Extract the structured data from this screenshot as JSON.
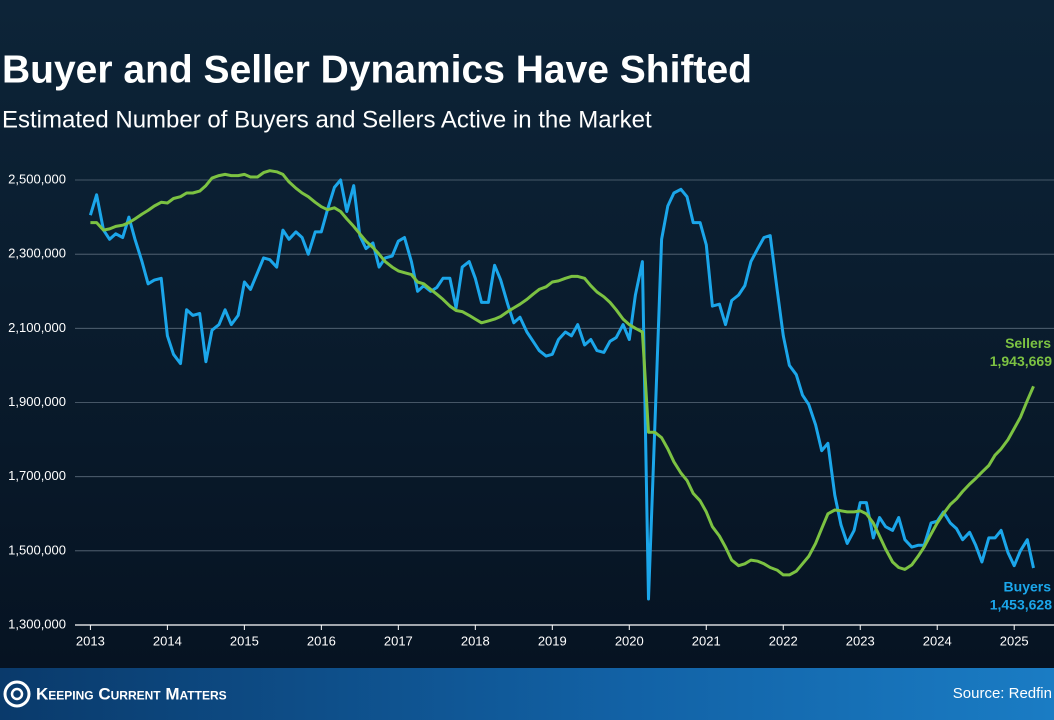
{
  "chart_data": {
    "type": "line",
    "title": "Buyer and Seller Dynamics Have Shifted",
    "subtitle": "Estimated Number of Buyers and Sellers Active in the Market",
    "brand": "Keeping Current Matters",
    "source": "Source: Redfin",
    "xlim": [
      2012.8,
      2025.4
    ],
    "xticks": [
      2013,
      2014,
      2015,
      2016,
      2017,
      2018,
      2019,
      2020,
      2021,
      2022,
      2023,
      2024,
      2025
    ],
    "ylim": [
      1300000,
      2500000
    ],
    "yticks": [
      {
        "value": 1300000,
        "label": "1,300,000"
      },
      {
        "value": 1500000,
        "label": "1,500,000"
      },
      {
        "value": 1700000,
        "label": "1,700,000"
      },
      {
        "value": 1900000,
        "label": "1,900,000"
      },
      {
        "value": 2100000,
        "label": "2,100,000"
      },
      {
        "value": 2300000,
        "label": "2,300,000"
      },
      {
        "value": 2500000,
        "label": "2,500,000"
      }
    ],
    "grid": true,
    "x": [
      2013,
      2013.08,
      2013.17,
      2013.25,
      2013.33,
      2013.42,
      2013.5,
      2013.58,
      2013.67,
      2013.75,
      2013.83,
      2013.92,
      2014,
      2014.08,
      2014.17,
      2014.25,
      2014.33,
      2014.42,
      2014.5,
      2014.58,
      2014.67,
      2014.75,
      2014.83,
      2014.92,
      2015,
      2015.08,
      2015.17,
      2015.25,
      2015.33,
      2015.42,
      2015.5,
      2015.58,
      2015.67,
      2015.75,
      2015.83,
      2015.92,
      2016,
      2016.08,
      2016.17,
      2016.25,
      2016.33,
      2016.42,
      2016.5,
      2016.58,
      2016.67,
      2016.75,
      2016.83,
      2016.92,
      2017,
      2017.08,
      2017.17,
      2017.25,
      2017.33,
      2017.42,
      2017.5,
      2017.58,
      2017.67,
      2017.75,
      2017.83,
      2017.92,
      2018,
      2018.08,
      2018.17,
      2018.25,
      2018.33,
      2018.42,
      2018.5,
      2018.58,
      2018.67,
      2018.75,
      2018.83,
      2018.92,
      2019,
      2019.08,
      2019.17,
      2019.25,
      2019.33,
      2019.42,
      2019.5,
      2019.58,
      2019.67,
      2019.75,
      2019.83,
      2019.92,
      2020,
      2020.08,
      2020.17,
      2020.25,
      2020.33,
      2020.42,
      2020.5,
      2020.58,
      2020.67,
      2020.75,
      2020.83,
      2020.92,
      2021,
      2021.08,
      2021.17,
      2021.25,
      2021.33,
      2021.42,
      2021.5,
      2021.58,
      2021.67,
      2021.75,
      2021.83,
      2021.92,
      2022,
      2022.08,
      2022.17,
      2022.25,
      2022.33,
      2022.42,
      2022.5,
      2022.58,
      2022.67,
      2022.75,
      2022.83,
      2022.92,
      2023,
      2023.08,
      2023.17,
      2023.25,
      2023.33,
      2023.42,
      2023.5,
      2023.58,
      2023.67,
      2023.75,
      2023.83,
      2023.92,
      2024,
      2024.08,
      2024.17,
      2024.25,
      2024.33,
      2024.42,
      2024.5,
      2024.58,
      2024.67,
      2024.75,
      2024.83,
      2024.92,
      2025,
      2025.08,
      2025.17,
      2025.25
    ],
    "series": [
      {
        "name": "Buyers",
        "color": "#1ba6ea",
        "end_label": "1,453,628",
        "values": [
          2405000,
          2460000,
          2365000,
          2340000,
          2355000,
          2345000,
          2400000,
          2340000,
          2280000,
          2220000,
          2230000,
          2235000,
          2080000,
          2030000,
          2005000,
          2150000,
          2135000,
          2140000,
          2010000,
          2095000,
          2110000,
          2150000,
          2110000,
          2135000,
          2225000,
          2205000,
          2250000,
          2290000,
          2285000,
          2265000,
          2365000,
          2340000,
          2360000,
          2345000,
          2300000,
          2360000,
          2360000,
          2420000,
          2480000,
          2500000,
          2415000,
          2485000,
          2350000,
          2315000,
          2330000,
          2265000,
          2290000,
          2295000,
          2335000,
          2345000,
          2280000,
          2200000,
          2215000,
          2200000,
          2210000,
          2235000,
          2235000,
          2155000,
          2265000,
          2280000,
          2235000,
          2170000,
          2170000,
          2270000,
          2230000,
          2165000,
          2115000,
          2130000,
          2090000,
          2065000,
          2040000,
          2025000,
          2030000,
          2070000,
          2090000,
          2080000,
          2110000,
          2055000,
          2070000,
          2040000,
          2035000,
          2065000,
          2075000,
          2110000,
          2070000,
          2190000,
          2280000,
          1370000,
          1825000,
          2340000,
          2430000,
          2465000,
          2475000,
          2455000,
          2385000,
          2385000,
          2325000,
          2160000,
          2165000,
          2110000,
          2175000,
          2190000,
          2215000,
          2280000,
          2315000,
          2345000,
          2350000,
          2205000,
          2080000,
          2000000,
          1975000,
          1920000,
          1895000,
          1840000,
          1770000,
          1790000,
          1650000,
          1570000,
          1520000,
          1555000,
          1630000,
          1630000,
          1535000,
          1590000,
          1565000,
          1555000,
          1590000,
          1530000,
          1510000,
          1515000,
          1515000,
          1575000,
          1580000,
          1605000,
          1575000,
          1560000,
          1530000,
          1550000,
          1515000,
          1470000,
          1535000,
          1535000,
          1555000,
          1495000,
          1460000,
          1500000,
          1530000,
          1453628
        ]
      },
      {
        "name": "Sellers",
        "color": "#7cc242",
        "end_label": "1,943,669",
        "values": [
          2385000,
          2385000,
          2365000,
          2368000,
          2375000,
          2378000,
          2385000,
          2395000,
          2408000,
          2418000,
          2430000,
          2440000,
          2438000,
          2450000,
          2455000,
          2465000,
          2465000,
          2470000,
          2485000,
          2505000,
          2512000,
          2515000,
          2512000,
          2512000,
          2515000,
          2508000,
          2508000,
          2520000,
          2525000,
          2522000,
          2515000,
          2495000,
          2478000,
          2465000,
          2455000,
          2440000,
          2428000,
          2420000,
          2425000,
          2415000,
          2395000,
          2375000,
          2355000,
          2335000,
          2318000,
          2300000,
          2280000,
          2265000,
          2255000,
          2250000,
          2245000,
          2225000,
          2220000,
          2205000,
          2192000,
          2178000,
          2160000,
          2148000,
          2145000,
          2135000,
          2125000,
          2115000,
          2120000,
          2125000,
          2132000,
          2145000,
          2155000,
          2165000,
          2178000,
          2192000,
          2205000,
          2212000,
          2225000,
          2228000,
          2235000,
          2240000,
          2240000,
          2235000,
          2215000,
          2198000,
          2185000,
          2170000,
          2150000,
          2125000,
          2110000,
          2100000,
          2090000,
          1820000,
          1820000,
          1805000,
          1775000,
          1740000,
          1710000,
          1690000,
          1655000,
          1635000,
          1605000,
          1565000,
          1540000,
          1510000,
          1475000,
          1460000,
          1465000,
          1475000,
          1472000,
          1465000,
          1455000,
          1448000,
          1435000,
          1435000,
          1445000,
          1465000,
          1485000,
          1520000,
          1560000,
          1600000,
          1610000,
          1608000,
          1605000,
          1605000,
          1608000,
          1600000,
          1575000,
          1540000,
          1505000,
          1470000,
          1455000,
          1450000,
          1462000,
          1485000,
          1510000,
          1545000,
          1575000,
          1600000,
          1625000,
          1640000,
          1660000,
          1680000,
          1695000,
          1712000,
          1730000,
          1758000,
          1775000,
          1800000,
          1830000,
          1860000,
          1905000,
          1943669
        ]
      }
    ]
  }
}
